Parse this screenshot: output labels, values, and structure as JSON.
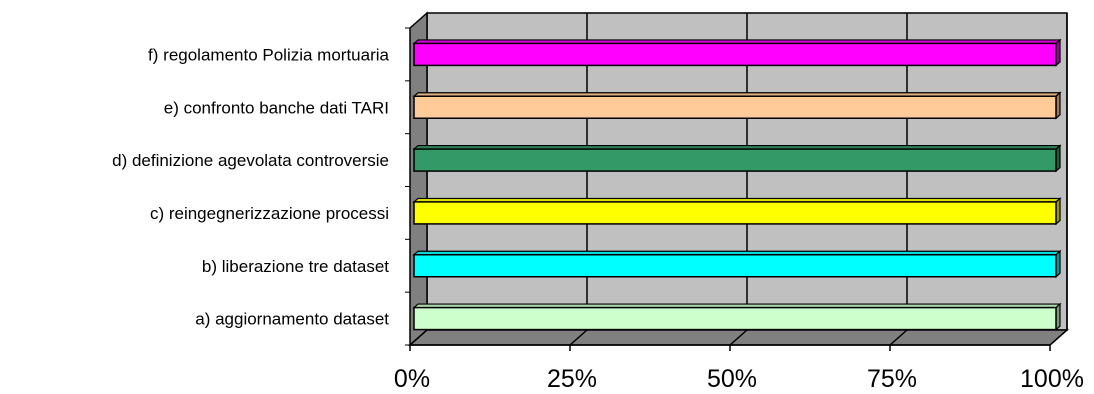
{
  "chart_data": {
    "type": "bar",
    "orientation": "horizontal",
    "style": "3d",
    "categories": [
      "a) aggiornamento dataset",
      "b) liberazione tre dataset",
      "c) reingegnerizzazione processi",
      "d) definizione agevolata controversie",
      "e) confronto banche dati TARI",
      "f) regolamento Polizia mortuaria"
    ],
    "values": [
      100,
      100,
      100,
      100,
      100,
      100
    ],
    "unit": "%",
    "colors": [
      "#ccffcc",
      "#00ffff",
      "#ffff00",
      "#339966",
      "#ffcc99",
      "#ff00ff"
    ],
    "xlim": [
      0,
      100
    ],
    "xticks": [
      0,
      25,
      50,
      75,
      100
    ],
    "xtick_labels": [
      "0%",
      "25%",
      "50%",
      "75%",
      "100%"
    ],
    "grid": true,
    "legend": "none",
    "title": "",
    "xlabel": "",
    "ylabel": ""
  }
}
